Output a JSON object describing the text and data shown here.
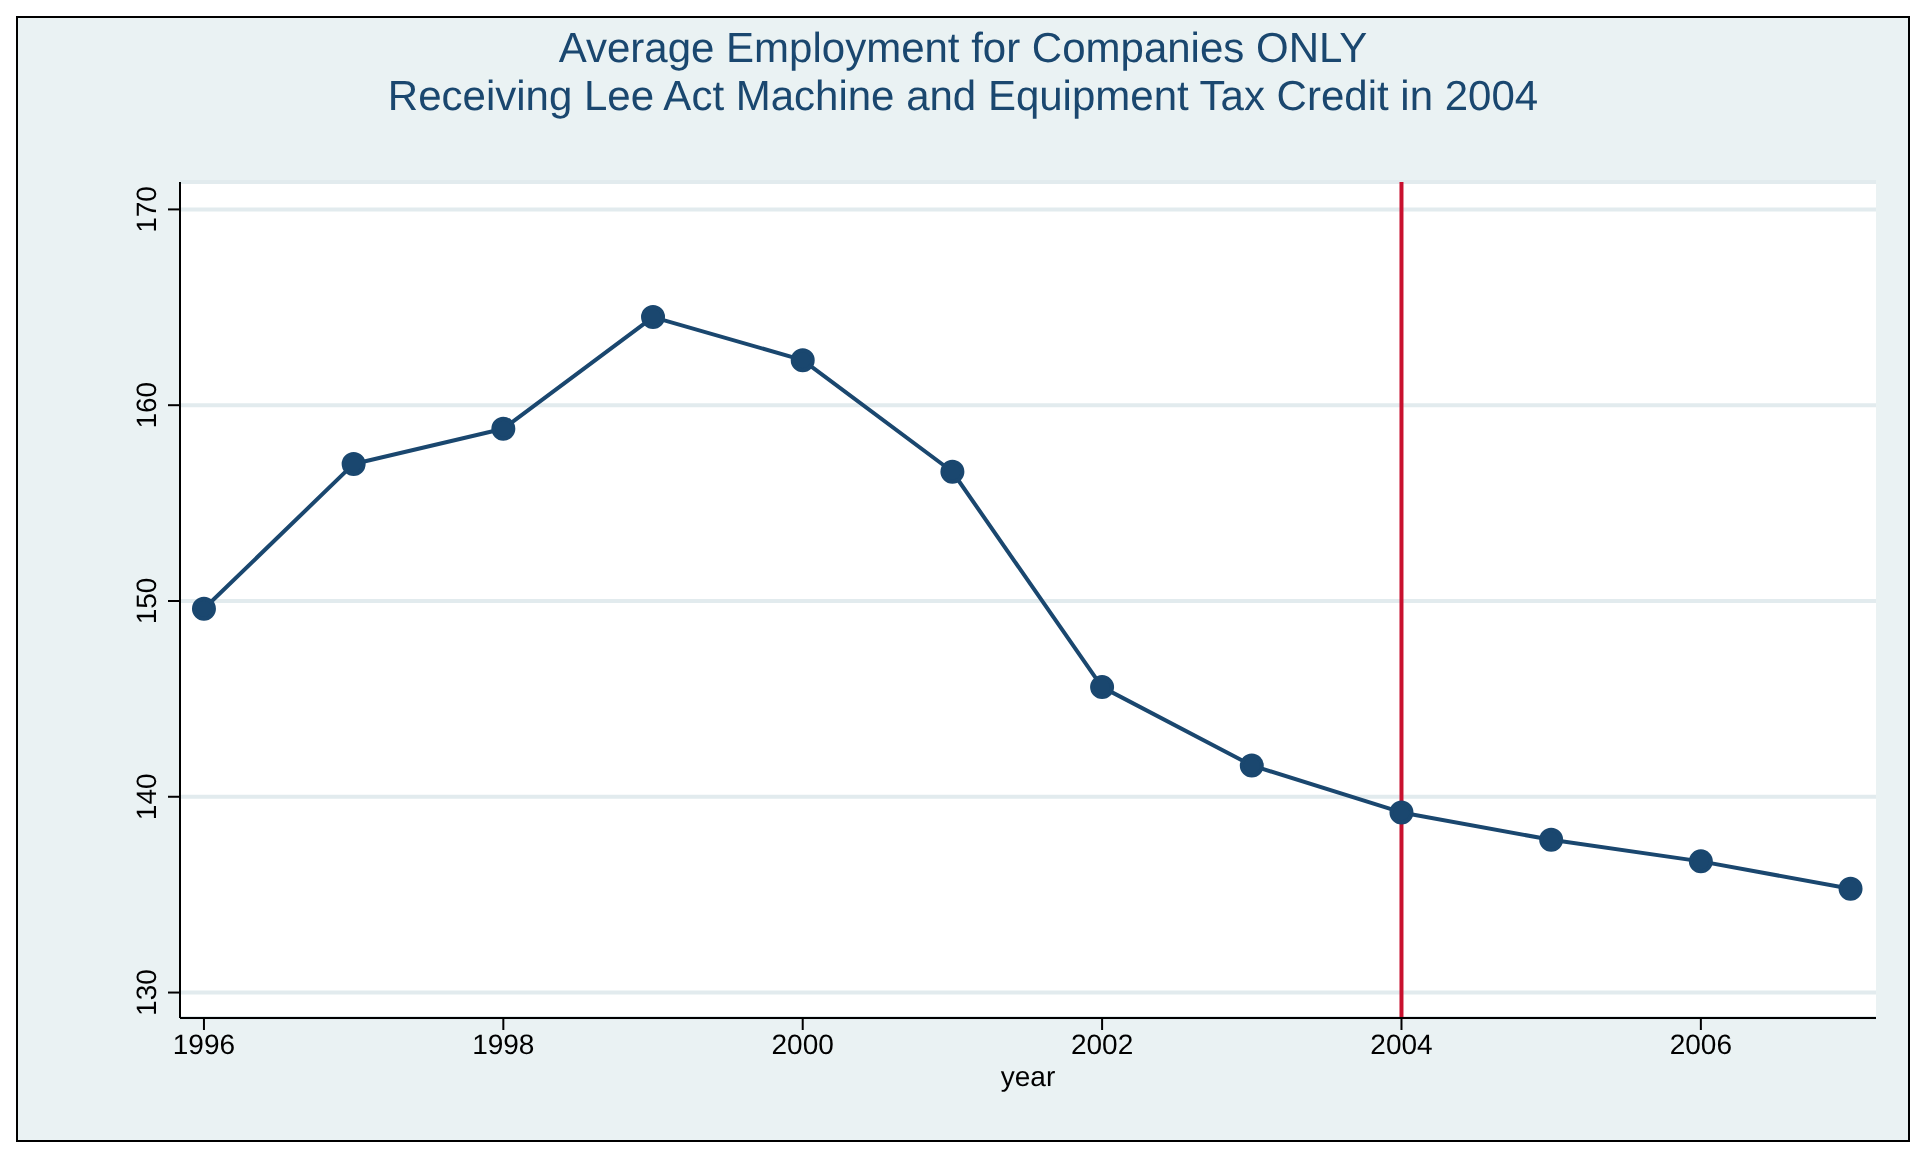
{
  "chart_data": {
    "type": "line",
    "title": "Average Employment for Companies ONLY\nReceiving Lee Act Machine and Equipment Tax Credit in 2004",
    "xlabel": "year",
    "x": [
      1996,
      1997,
      1998,
      1999,
      2000,
      2001,
      2002,
      2003,
      2004,
      2005,
      2006,
      2007
    ],
    "series": [
      {
        "color": "#1a476f",
        "values": [
          149.6,
          157.0,
          158.8,
          164.5,
          162.3,
          156.6,
          145.6,
          141.6,
          139.2,
          137.8,
          136.7,
          135.3
        ]
      }
    ],
    "xlim": [
      1995.84,
      2007.17
    ],
    "xticks": [
      1996,
      1998,
      2000,
      2002,
      2004,
      2006
    ],
    "ylim": [
      128.7,
      171.4
    ],
    "yticks": [
      130,
      140,
      150,
      160,
      170
    ],
    "ref_lines": [
      {
        "axis": "x",
        "value": 2004,
        "color": "#c8102e"
      }
    ],
    "grid": "y",
    "legend": false,
    "marker": "circle",
    "line_style": "solid"
  }
}
